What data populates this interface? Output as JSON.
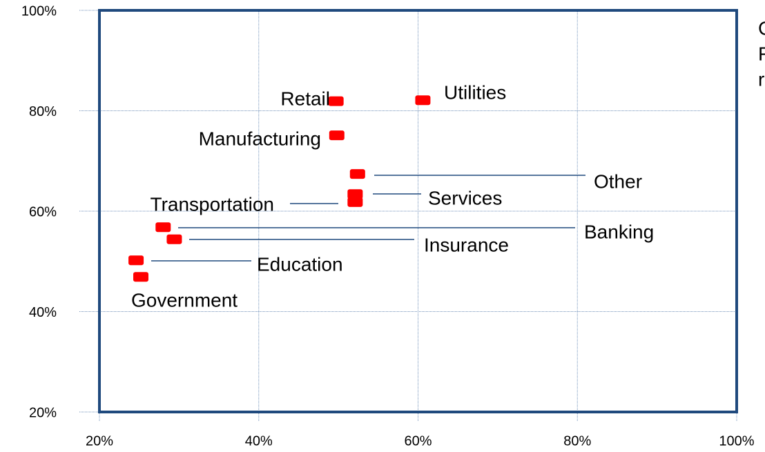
{
  "chart_data": {
    "type": "scatter",
    "color": "#ff0000",
    "points": [
      {
        "name": "Retail",
        "x": 49.7,
        "y": 81.9
      },
      {
        "name": "Utilities",
        "x": 60.6,
        "y": 82.1
      },
      {
        "name": "Manufacturing",
        "x": 49.8,
        "y": 75.1
      },
      {
        "name": "Other",
        "x": 52.4,
        "y": 67.4
      },
      {
        "name": "Services",
        "x": 52.1,
        "y": 63.4
      },
      {
        "name": "Transportation",
        "x": 52.1,
        "y": 61.8
      },
      {
        "name": "Banking",
        "x": 28.0,
        "y": 56.8
      },
      {
        "name": "Insurance",
        "x": 29.4,
        "y": 54.4
      },
      {
        "name": "Education",
        "x": 24.6,
        "y": 50.2
      },
      {
        "name": "Government",
        "x": 25.2,
        "y": 46.9
      }
    ],
    "xlim": [
      20,
      100
    ],
    "ylim": [
      20,
      100
    ],
    "xticks": [
      {
        "value": 20,
        "label": "20%"
      },
      {
        "value": 40,
        "label": "40%"
      },
      {
        "value": 60,
        "label": "60%"
      },
      {
        "value": 80,
        "label": "80%"
      },
      {
        "value": 100,
        "label": "100%"
      }
    ],
    "yticks": [
      {
        "value": 20,
        "label": "20%"
      },
      {
        "value": 40,
        "label": "40%"
      },
      {
        "value": 60,
        "label": "60%"
      },
      {
        "value": 80,
        "label": "80%"
      },
      {
        "value": 100,
        "label": "100%"
      }
    ],
    "grid": true,
    "annotations": [
      "C",
      "F",
      "r"
    ]
  }
}
